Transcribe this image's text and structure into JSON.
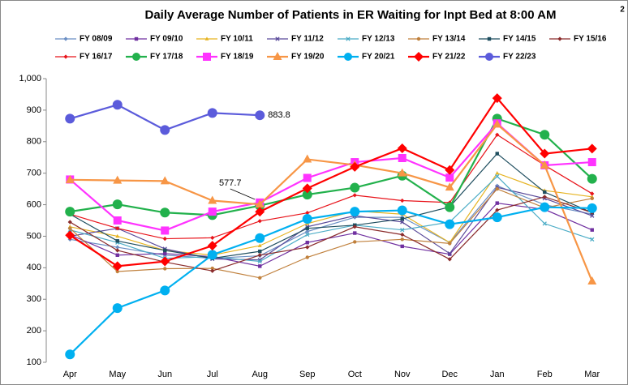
{
  "chart_data": {
    "type": "line",
    "title": "Daily Average Number of Patients in ER Waiting for Inpt Bed at 8:00 AM",
    "title_note": "2",
    "categories": [
      "Apr",
      "May",
      "Jun",
      "Jul",
      "Aug",
      "Sep",
      "Oct",
      "Nov",
      "Dec",
      "Jan",
      "Feb",
      "Mar"
    ],
    "ylim": [
      100,
      1000
    ],
    "yticks": [
      100,
      200,
      300,
      400,
      500,
      600,
      700,
      800,
      900,
      {
        "value": 1000,
        "label": "1,000"
      }
    ],
    "grid": false,
    "legend": "top",
    "annotations": [
      "883.8",
      "577.7"
    ],
    "series": [
      {
        "name": "FY 08/09",
        "color": "#6b8fc4",
        "marker": "diamond",
        "values": [
          490,
          465,
          440,
          430,
          438,
          515,
          560,
          560,
          480,
          660,
          600,
          570
        ]
      },
      {
        "name": "FY 09/10",
        "color": "#7030a0",
        "marker": "square",
        "values": [
          505,
          440,
          445,
          435,
          405,
          480,
          510,
          468,
          443,
          605,
          585,
          520
        ]
      },
      {
        "name": "FY 10/11",
        "color": "#e6b422",
        "marker": "triangle",
        "values": [
          530,
          500,
          455,
          440,
          470,
          540,
          580,
          570,
          480,
          700,
          645,
          625
        ]
      },
      {
        "name": "FY 11/12",
        "color": "#5a4a9a",
        "marker": "x",
        "values": [
          500,
          525,
          460,
          428,
          425,
          530,
          565,
          545,
          445,
          655,
          620,
          565
        ]
      },
      {
        "name": "FY 12/13",
        "color": "#4bacc6",
        "marker": "x",
        "values": [
          520,
          480,
          430,
          435,
          420,
          505,
          535,
          520,
          545,
          690,
          540,
          490
        ]
      },
      {
        "name": "FY 13/14",
        "color": "#c0803c",
        "marker": "circle",
        "values": [
          525,
          388,
          397,
          398,
          368,
          433,
          482,
          490,
          477,
          650,
          590,
          620
        ]
      },
      {
        "name": "FY 14/15",
        "color": "#1f4e5f",
        "marker": "square",
        "values": [
          570,
          485,
          455,
          430,
          452,
          525,
          535,
          555,
          593,
          762,
          640,
          575
        ]
      },
      {
        "name": "FY 15/16",
        "color": "#8b2c2c",
        "marker": "diamond",
        "values": [
          545,
          455,
          418,
          390,
          440,
          465,
          530,
          505,
          427,
          583,
          625,
          575
        ]
      },
      {
        "name": "FY 16/17",
        "color": "#e8141b",
        "marker": "diamond",
        "values": [
          570,
          525,
          492,
          495,
          548,
          574,
          630,
          613,
          607,
          822,
          725,
          635
        ]
      },
      {
        "name": "FY 17/18",
        "color": "#22b14c",
        "marker": "circle",
        "values": [
          578,
          601,
          575,
          567,
          597,
          632,
          654,
          692,
          592,
          873,
          822,
          682
        ]
      },
      {
        "name": "FY 18/19",
        "color": "#ff33ff",
        "marker": "square",
        "values": [
          680,
          550,
          518,
          578,
          607,
          685,
          735,
          748,
          686,
          858,
          725,
          735
        ]
      },
      {
        "name": "FY 19/20",
        "color": "#f79646",
        "marker": "triangle",
        "values": [
          679,
          677,
          675,
          613,
          601,
          744,
          726,
          700,
          655,
          855,
          725,
          357
        ]
      },
      {
        "name": "FY 20/21",
        "color": "#00b0f0",
        "marker": "circle",
        "values": [
          125,
          272,
          328,
          441,
          494,
          555,
          578,
          582,
          538,
          560,
          592,
          589
        ]
      },
      {
        "name": "FY 21/22",
        "color": "#ff0000",
        "marker": "diamond",
        "values": [
          503,
          405,
          420,
          470,
          577.7,
          652,
          720,
          779,
          710,
          938,
          762,
          778
        ]
      },
      {
        "name": "FY 22/23",
        "color": "#5b5bdb",
        "marker": "circle",
        "values": [
          873,
          917,
          837,
          891,
          883.8,
          null,
          null,
          null,
          null,
          null,
          null,
          null
        ]
      }
    ]
  }
}
